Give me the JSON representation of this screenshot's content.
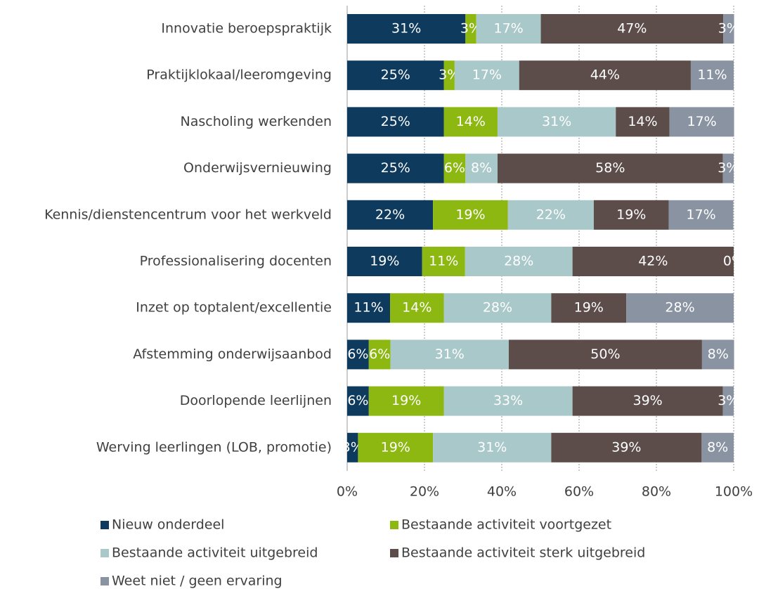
{
  "chart_data": {
    "type": "stacked-bar-horizontal",
    "categories": [
      "Innovatie beroepspraktijk",
      "Praktijklokaal/leeromgeving",
      "Nascholing werkenden",
      "Onderwijsvernieuwing",
      "Kennis/dienstencentrum voor het werkveld",
      "Professionalisering docenten",
      "Inzet op toptalent/excellentie",
      "Afstemming onderwijsaanbod",
      "Doorlopende leerlijnen",
      "Werving leerlingen (LOB, promotie)"
    ],
    "series": [
      {
        "name": "Nieuw onderdeel",
        "color": "#0e3a5e",
        "values": [
          30.6,
          25,
          25,
          25,
          22.2,
          19.4,
          11.1,
          5.6,
          5.6,
          2.8
        ],
        "value_labels": [
          "31%",
          "25%",
          "25%",
          "25%",
          "22%",
          "19%",
          "11%",
          "6%",
          "6%",
          "3%"
        ]
      },
      {
        "name": "Bestaande activiteit voortgezet",
        "color": "#8db812",
        "values": [
          2.8,
          2.8,
          13.9,
          5.6,
          19.4,
          11.1,
          13.9,
          5.6,
          19.4,
          19.4
        ],
        "value_labels": [
          "3%",
          "3%",
          "14%",
          "6%",
          "19%",
          "11%",
          "14%",
          "6%",
          "19%",
          "19%"
        ]
      },
      {
        "name": "Bestaande activiteit uitgebreid",
        "color": "#a9c8c9",
        "values": [
          16.7,
          16.7,
          30.6,
          8.3,
          22.2,
          27.8,
          27.8,
          30.6,
          33.3,
          30.6
        ],
        "value_labels": [
          "17%",
          "17%",
          "31%",
          "8%",
          "22%",
          "28%",
          "28%",
          "31%",
          "33%",
          "31%"
        ]
      },
      {
        "name": "Bestaande activiteit sterk uitgebreid",
        "color": "#5c4d4b",
        "values": [
          47.2,
          44.4,
          13.9,
          58.3,
          19.4,
          41.7,
          19.4,
          50,
          38.9,
          38.9
        ],
        "value_labels": [
          "47%",
          "44%",
          "14%",
          "58%",
          "19%",
          "42%",
          "19%",
          "50%",
          "39%",
          "39%"
        ]
      },
      {
        "name": "Weet niet / geen ervaring",
        "color": "#8a93a1",
        "values": [
          2.8,
          11.1,
          16.7,
          2.8,
          16.7,
          0,
          27.8,
          8.3,
          2.8,
          8.3
        ],
        "value_labels": [
          "3%",
          "11%",
          "17%",
          "3%",
          "17%",
          "0%",
          "28%",
          "8%",
          "3%",
          "8%"
        ]
      }
    ],
    "xlim": [
      0,
      100
    ],
    "xticks": [
      {
        "value": 0,
        "label": "0%"
      },
      {
        "value": 20,
        "label": "20%"
      },
      {
        "value": 40,
        "label": "40%"
      },
      {
        "value": 60,
        "label": "60%"
      },
      {
        "value": 80,
        "label": "80%"
      },
      {
        "value": 100,
        "label": "100%"
      }
    ],
    "grid": true
  }
}
